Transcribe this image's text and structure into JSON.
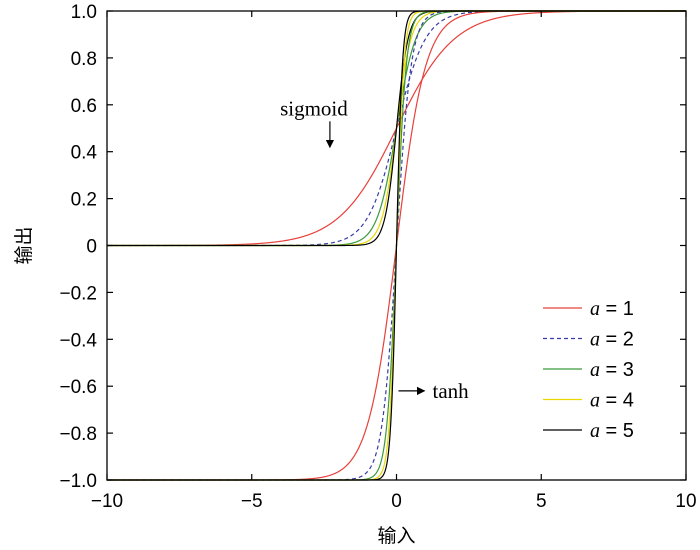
{
  "chart_data": {
    "type": "line",
    "xlabel": "输入",
    "ylabel": "输出",
    "xlim": [
      -10,
      10
    ],
    "ylim": [
      -1.0,
      1.0
    ],
    "x_ticks": [
      -10,
      -5,
      0,
      5,
      10
    ],
    "x_tick_labels": [
      "−10",
      "−5",
      "0",
      "5",
      "10"
    ],
    "y_ticks": [
      1.0,
      0.8,
      0.6,
      0.4,
      0.2,
      0,
      -0.2,
      -0.4,
      -0.6,
      -0.8,
      -1.0
    ],
    "y_tick_labels": [
      "1.0",
      "0.8",
      "0.6",
      "0.4",
      "0.2",
      "0",
      "−0.2",
      "−0.4",
      "−0.6",
      "−0.8",
      "−1.0"
    ],
    "grid": false,
    "legend_position": "bottom-right",
    "curve_families": [
      {
        "name": "sigmoid",
        "formula": "1/(1+exp(-a*x))"
      },
      {
        "name": "tanh",
        "formula": "tanh(a*x)"
      }
    ],
    "series": [
      {
        "name": "a = 1",
        "a": 1,
        "legend_var": "a",
        "legend_rest": " = 1",
        "color": "#e8403a",
        "dash": "solid"
      },
      {
        "name": "a = 2",
        "a": 2,
        "legend_var": "a",
        "legend_rest": " = 2",
        "color": "#3a3aa8",
        "dash": "dashed"
      },
      {
        "name": "a = 3",
        "a": 3,
        "legend_var": "a",
        "legend_rest": " = 3",
        "color": "#3a9a3a",
        "dash": "solid"
      },
      {
        "name": "a = 4",
        "a": 4,
        "legend_var": "a",
        "legend_rest": " = 4",
        "color": "#e8d800",
        "dash": "solid"
      },
      {
        "name": "a = 5",
        "a": 5,
        "legend_var": "a",
        "legend_rest": " = 5",
        "color": "#000000",
        "dash": "solid"
      }
    ],
    "annotations": [
      {
        "text": "sigmoid",
        "points_to": {
          "x": -2.3,
          "y": 0.393
        },
        "arrow_direction": "down"
      },
      {
        "text": "tanh",
        "points_to": {
          "x": 0,
          "y": -0.62
        },
        "arrow_direction": "right"
      }
    ]
  }
}
